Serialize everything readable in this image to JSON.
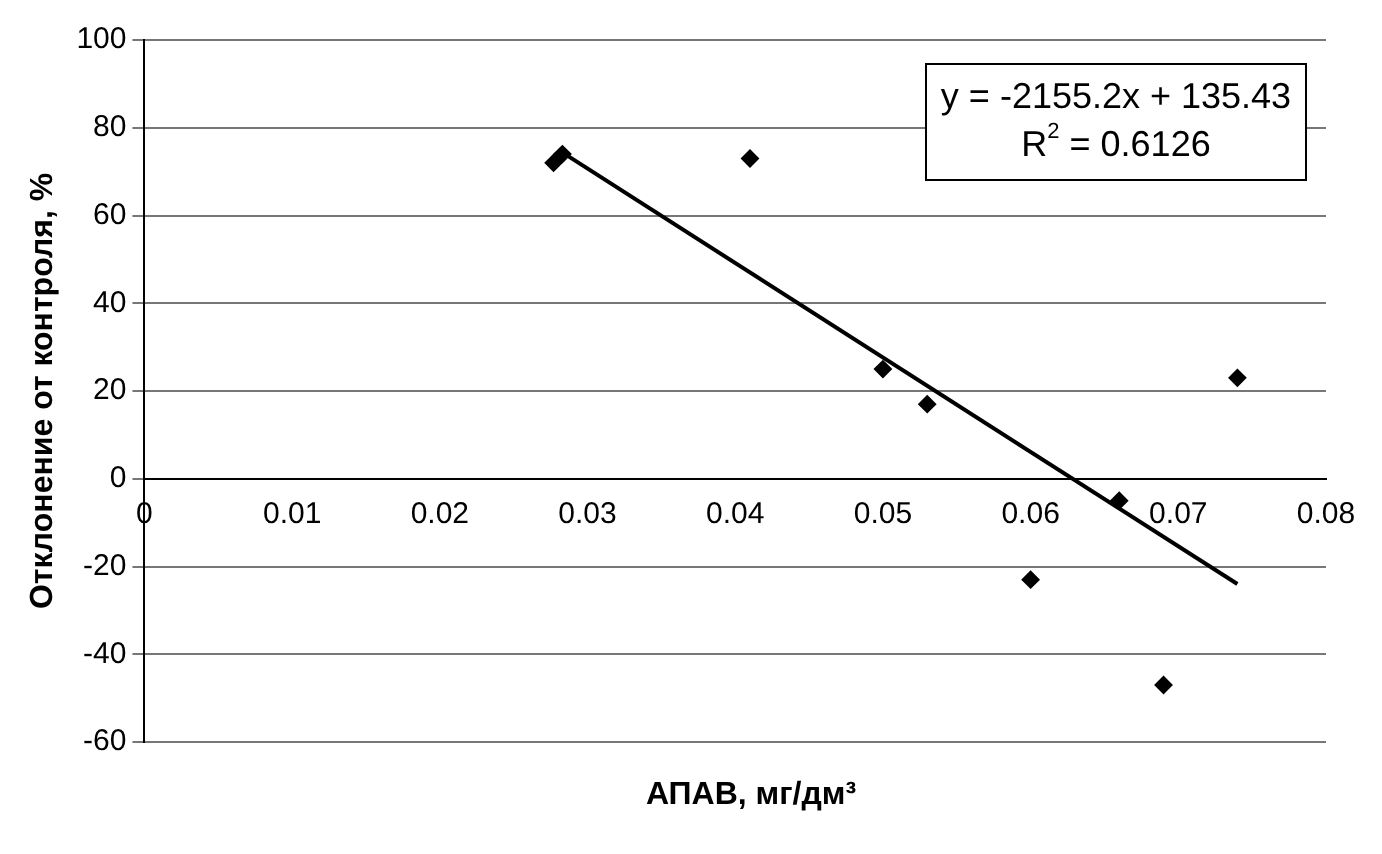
{
  "chart_data": {
    "type": "scatter",
    "xlabel": "АПАВ, мг/дм³",
    "ylabel": "Отклонение от контроля, %",
    "series": [
      {
        "type": "scatter",
        "color": "#000000",
        "marker": "diamond",
        "x": [
          0.0277,
          0.0283,
          0.041,
          0.05,
          0.053,
          0.06,
          0.066,
          0.069,
          0.074
        ],
        "values": [
          72,
          74,
          73,
          25,
          17,
          -23,
          -5,
          -47,
          23
        ]
      },
      {
        "type": "line",
        "color": "#000000",
        "x": [
          0.028,
          0.074
        ],
        "values": [
          75,
          -24
        ],
        "marker": "none"
      }
    ],
    "xlim": [
      0,
      0.08
    ],
    "xticks": [
      0,
      0.01,
      0.02,
      0.03,
      0.04,
      0.05,
      0.06,
      0.07,
      0.08
    ],
    "ylim": [
      -60,
      100
    ],
    "yticks": [
      -60,
      -40,
      -20,
      0,
      20,
      40,
      60,
      80,
      100
    ],
    "grid": "y",
    "legend": false,
    "annotations": [
      "y = -2155.2x + 135.43",
      "R$^{2}$ = 0.6126"
    ]
  }
}
